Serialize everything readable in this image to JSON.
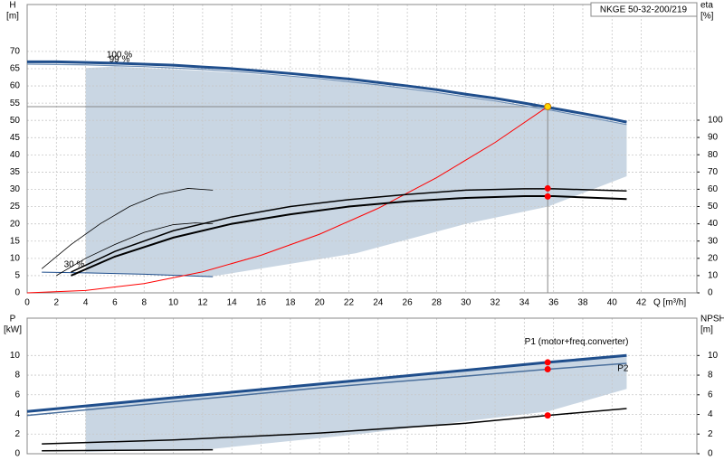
{
  "chart_data": [
    {
      "type": "line",
      "title": "NKGE 50-32-200/219",
      "y_label": "H",
      "y_unit": "[m]",
      "y2_label": "eta",
      "y2_unit": "[%]",
      "x_label": "Q [m³/h]",
      "xlim": [
        0,
        45.8
      ],
      "xticks": [
        0,
        2,
        4,
        6,
        8,
        10,
        12,
        14,
        16,
        18,
        20,
        22,
        24,
        26,
        28,
        30,
        32,
        34,
        36,
        38,
        40,
        42
      ],
      "ylim": [
        0,
        83.6
      ],
      "yticks": [
        0,
        5,
        10,
        15,
        20,
        25,
        30,
        35,
        40,
        45,
        50,
        55,
        60,
        65,
        70
      ],
      "y2lim": [
        0,
        167
      ],
      "y2ticks": [
        0,
        10,
        20,
        30,
        40,
        50,
        60,
        70,
        80,
        90,
        100
      ],
      "grid": true,
      "region_color": "#c9d6e3",
      "region": {
        "x": [
          4,
          6,
          12,
          18,
          24,
          30,
          36,
          41,
          41,
          35.6,
          30,
          22.5,
          12.7,
          4
        ],
        "y": [
          65.2,
          65.6,
          64.4,
          62.7,
          60.2,
          56.8,
          52.6,
          48.7,
          33.8,
          25,
          20,
          11.5,
          4.8,
          5.8
        ]
      },
      "series": [
        {
          "color": "#1f4e8c",
          "width": 3,
          "x": [
            0,
            2,
            4,
            6,
            8,
            10,
            12,
            14,
            16,
            18,
            20,
            22,
            24,
            26,
            28,
            30,
            32,
            34,
            36,
            38,
            40,
            41
          ],
          "values": [
            67.0,
            67.0,
            66.8,
            66.6,
            66.3,
            66.0,
            65.5,
            65.0,
            64.3,
            63.6,
            62.8,
            62.0,
            61.0,
            60.0,
            58.9,
            57.6,
            56.4,
            55.0,
            53.5,
            52.0,
            50.4,
            49.5
          ]
        },
        {
          "color": "#6f8fb5",
          "width": 1.2,
          "x": [
            0,
            4,
            8,
            12,
            16,
            20,
            24,
            28,
            32,
            36,
            41
          ],
          "values": [
            66.3,
            66.1,
            65.6,
            64.8,
            63.6,
            62.1,
            60.3,
            58.1,
            55.6,
            52.8,
            48.8
          ]
        },
        {
          "color": "#1f4e8c",
          "width": 1,
          "x": [
            1,
            4,
            8,
            12.7
          ],
          "values": [
            6.0,
            5.8,
            5.4,
            4.7
          ]
        },
        {
          "color": "#ff0000",
          "width": 1,
          "x": [
            0,
            4,
            8,
            12,
            16,
            20,
            24,
            28,
            32,
            35.6
          ],
          "values": [
            0,
            0.7,
            2.7,
            6.1,
            10.9,
            17.0,
            24.5,
            33.4,
            43.6,
            54.0
          ]
        },
        {
          "color": "#000000",
          "width": 1.5,
          "axis": "y2",
          "x": [
            3,
            6,
            10,
            14,
            18,
            22,
            26,
            30,
            34,
            36,
            41
          ],
          "values": [
            12,
            24,
            36,
            44,
            50,
            54,
            57,
            59.5,
            60.3,
            60.3,
            59
          ]
        },
        {
          "color": "#000000",
          "width": 2,
          "axis": "y2",
          "x": [
            3,
            6,
            10,
            14,
            18,
            22,
            26,
            30,
            34,
            36,
            41
          ],
          "values": [
            10,
            21,
            32,
            40,
            45.5,
            50,
            53,
            55,
            56,
            56,
            54.3
          ]
        },
        {
          "color": "#000000",
          "width": 0.8,
          "axis": "y2",
          "x": [
            1,
            3,
            5,
            7,
            9,
            11,
            12.7
          ],
          "values": [
            14,
            28,
            40,
            50,
            57,
            60.5,
            59.5
          ]
        },
        {
          "color": "#000000",
          "width": 0.8,
          "axis": "y2",
          "x": [
            2,
            4,
            6,
            8,
            10,
            11.5,
            12.7
          ],
          "values": [
            10,
            20,
            28,
            35,
            39.5,
            40.5,
            40
          ]
        }
      ],
      "annotations": [
        "100 %",
        "99 %",
        "30 %"
      ],
      "duty_point": {
        "x": 35.6,
        "y": 54.0,
        "eta": [
          60.5,
          55.8
        ]
      }
    },
    {
      "type": "line",
      "y_label": "P",
      "y_unit": "[kW]",
      "y2_label": "NPSH",
      "y2_unit": "[m]",
      "xlim": [
        0,
        45.8
      ],
      "xticks": [
        0,
        2,
        4,
        6,
        8,
        10,
        12,
        14,
        16,
        18,
        20,
        22,
        24,
        26,
        28,
        30,
        32,
        34,
        36,
        38,
        40,
        42
      ],
      "ylim": [
        0,
        13.8
      ],
      "yticks": [
        0,
        2,
        4,
        6,
        8,
        10
      ],
      "y2lim": [
        0,
        13.8
      ],
      "y2ticks": [
        0,
        2,
        4,
        6,
        8,
        10
      ],
      "grid": true,
      "region_color": "#c9d6e3",
      "region": {
        "x": [
          4,
          12,
          20,
          28,
          36,
          41,
          41,
          35.6,
          22.7,
          12.7,
          4
        ],
        "y": [
          4.8,
          6.0,
          7.2,
          8.3,
          9.3,
          9.9,
          6.6,
          4.3,
          2.0,
          0.5,
          0.2
        ]
      },
      "series": [
        {
          "name": "P1 (motor+freq.converter)",
          "color": "#1f4e8c",
          "width": 3,
          "x": [
            0,
            10,
            20,
            30,
            35.6,
            41
          ],
          "values": [
            4.3,
            5.7,
            7.1,
            8.5,
            9.3,
            10.0
          ]
        },
        {
          "name": "P2",
          "color": "#4a6f9c",
          "width": 1.5,
          "x": [
            0,
            10,
            20,
            30,
            35.6,
            41
          ],
          "values": [
            3.9,
            5.3,
            6.7,
            7.9,
            8.6,
            9.2
          ]
        },
        {
          "color": "#000000",
          "width": 1.5,
          "axis": "y2",
          "x": [
            1,
            10,
            20,
            30,
            35.6,
            41
          ],
          "values": [
            1.0,
            1.4,
            2.1,
            3.1,
            3.9,
            4.6
          ]
        },
        {
          "color": "#000000",
          "width": 1.5,
          "x": [
            1,
            12.7
          ],
          "values": [
            0.3,
            0.4
          ]
        }
      ],
      "duty_point": {
        "x": 35.6,
        "values": [
          9.3,
          8.6
        ],
        "npsh": 3.9
      }
    }
  ]
}
